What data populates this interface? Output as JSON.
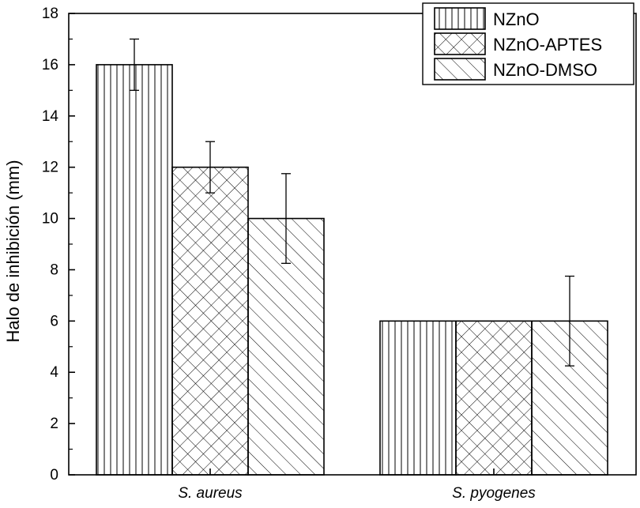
{
  "chart_data": {
    "type": "bar",
    "title": "",
    "xlabel": "",
    "ylabel": "Halo de inhibición (mm)",
    "ylim": [
      0,
      18
    ],
    "yticks": [
      0,
      2,
      4,
      6,
      8,
      10,
      12,
      14,
      16,
      18
    ],
    "ytick_labels": [
      "0",
      "2",
      "4",
      "6",
      "8",
      "10",
      "12",
      "14",
      "16",
      "18"
    ],
    "categories": [
      "S. aureus",
      "S. pyogenes"
    ],
    "series": [
      {
        "name": "NZnO",
        "values": [
          16,
          6
        ],
        "errors": [
          1,
          null
        ],
        "pattern": "vertical-lines"
      },
      {
        "name": "NZnO-APTES",
        "values": [
          12,
          6
        ],
        "errors": [
          1,
          null
        ],
        "pattern": "crosshatch"
      },
      {
        "name": "NZnO-DMSO",
        "values": [
          10,
          6
        ],
        "errors": [
          1.75,
          1.75
        ],
        "pattern": "diagonal-lines"
      }
    ],
    "legend_position": "top-right",
    "grid": false,
    "colors": {
      "bar_fill": "#ffffff",
      "bar_stroke": "#000000"
    }
  }
}
